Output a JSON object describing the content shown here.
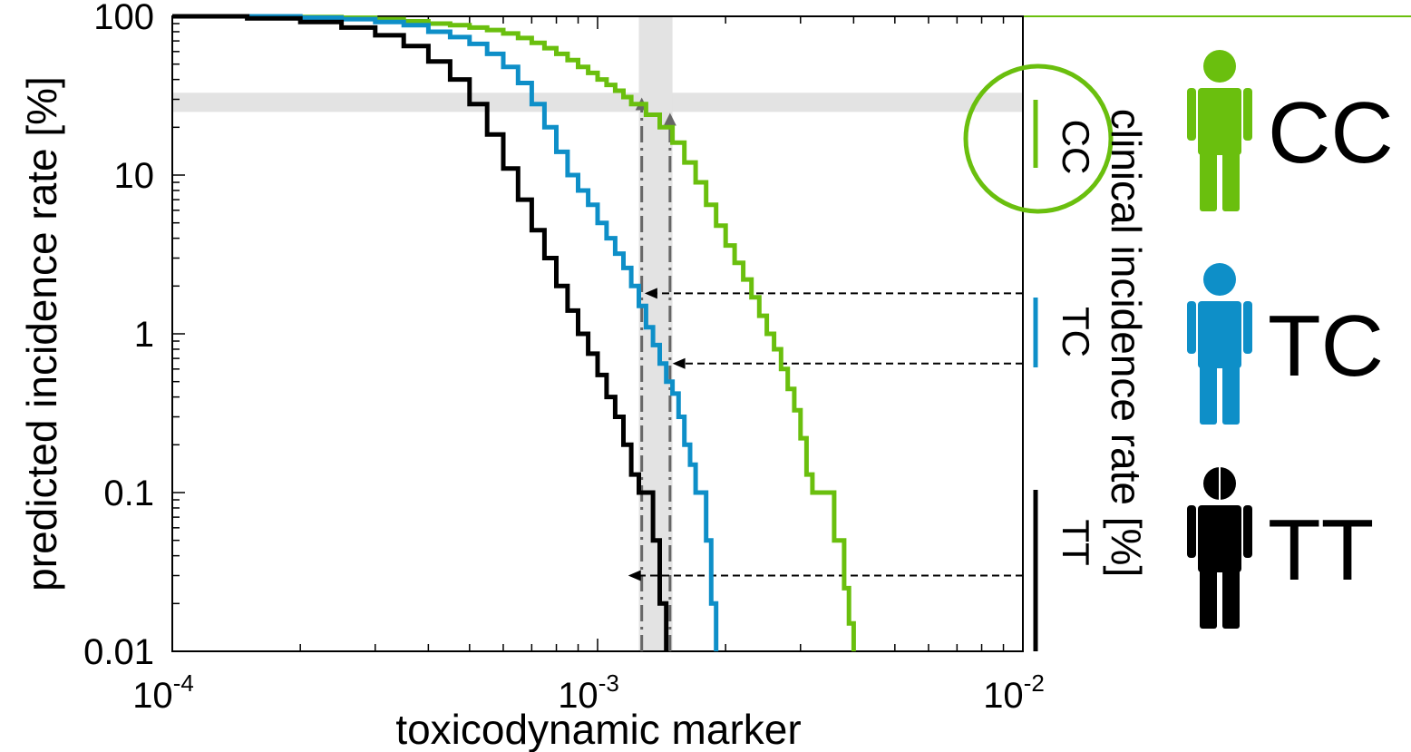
{
  "chart_data": {
    "type": "line",
    "x_scale": "log",
    "y_scale": "log",
    "xlim": [
      0.0001,
      0.01
    ],
    "ylim": [
      0.01,
      100
    ],
    "xlabel": "toxicodynamic marker",
    "ylabel": "predicted incidence rate [%]",
    "right_label": "clinical incidence rate  [%]",
    "x_tick_labels": [
      {
        "value": 0.0001,
        "base": "10",
        "exp": "-4"
      },
      {
        "value": 0.001,
        "base": "10",
        "exp": "-3"
      },
      {
        "value": 0.01,
        "base": "10",
        "exp": "-2"
      }
    ],
    "y_tick_labels": [
      {
        "value": 100,
        "text": "100"
      },
      {
        "value": 10,
        "text": "10"
      },
      {
        "value": 1,
        "text": "1"
      },
      {
        "value": 0.1,
        "text": "0.1"
      },
      {
        "value": 0.01,
        "text": "0.01"
      }
    ],
    "series": [
      {
        "name": "CC",
        "color": "#6abf0e",
        "points": [
          [
            0.0001,
            100
          ],
          [
            0.00018,
            99
          ],
          [
            0.00025,
            98
          ],
          [
            0.0003,
            96
          ],
          [
            0.00035,
            93
          ],
          [
            0.0004,
            90
          ],
          [
            0.00045,
            88
          ],
          [
            0.0005,
            85
          ],
          [
            0.00055,
            82
          ],
          [
            0.0006,
            78
          ],
          [
            0.00065,
            73
          ],
          [
            0.0007,
            68
          ],
          [
            0.00075,
            63
          ],
          [
            0.0008,
            58
          ],
          [
            0.00085,
            53
          ],
          [
            0.0009,
            48
          ],
          [
            0.00095,
            44
          ],
          [
            0.001,
            40
          ],
          [
            0.00105,
            37
          ],
          [
            0.0011,
            34
          ],
          [
            0.00115,
            31
          ],
          [
            0.0012,
            28
          ],
          [
            0.0013,
            24
          ],
          [
            0.0014,
            20
          ],
          [
            0.0015,
            16
          ],
          [
            0.0016,
            12
          ],
          [
            0.0017,
            9
          ],
          [
            0.0018,
            6.5
          ],
          [
            0.0019,
            4.8
          ],
          [
            0.002,
            3.6
          ],
          [
            0.0021,
            2.8
          ],
          [
            0.0022,
            2.2
          ],
          [
            0.0023,
            1.7
          ],
          [
            0.0024,
            1.3
          ],
          [
            0.0025,
            1.0
          ],
          [
            0.0026,
            0.8
          ],
          [
            0.0027,
            0.6
          ],
          [
            0.0028,
            0.45
          ],
          [
            0.0029,
            0.33
          ],
          [
            0.003,
            0.22
          ],
          [
            0.0031,
            0.13
          ],
          [
            0.0032,
            0.1
          ],
          [
            0.0034,
            0.1
          ],
          [
            0.0036,
            0.05
          ],
          [
            0.0038,
            0.025
          ],
          [
            0.0039,
            0.015
          ],
          [
            0.004,
            0.01
          ]
        ]
      },
      {
        "name": "TC",
        "color": "#0e8fc8",
        "points": [
          [
            0.0001,
            100
          ],
          [
            0.00015,
            100
          ],
          [
            0.0002,
            98
          ],
          [
            0.00025,
            96
          ],
          [
            0.0003,
            92
          ],
          [
            0.00035,
            88
          ],
          [
            0.0004,
            80
          ],
          [
            0.00045,
            74
          ],
          [
            0.0005,
            67
          ],
          [
            0.00055,
            58
          ],
          [
            0.0006,
            48
          ],
          [
            0.00065,
            38
          ],
          [
            0.0007,
            28
          ],
          [
            0.00075,
            20
          ],
          [
            0.0008,
            14
          ],
          [
            0.00085,
            10
          ],
          [
            0.0009,
            8
          ],
          [
            0.00095,
            6.5
          ],
          [
            0.001,
            5
          ],
          [
            0.00105,
            4
          ],
          [
            0.0011,
            3.2
          ],
          [
            0.00115,
            2.6
          ],
          [
            0.0012,
            2
          ],
          [
            0.00125,
            1.5
          ],
          [
            0.0013,
            1.1
          ],
          [
            0.00135,
            0.85
          ],
          [
            0.0014,
            0.65
          ],
          [
            0.00145,
            0.5
          ],
          [
            0.0015,
            0.42
          ],
          [
            0.00155,
            0.3
          ],
          [
            0.0016,
            0.2
          ],
          [
            0.00165,
            0.15
          ],
          [
            0.0017,
            0.1
          ],
          [
            0.00175,
            0.1
          ],
          [
            0.0018,
            0.05
          ],
          [
            0.00185,
            0.02
          ],
          [
            0.0019,
            0.01
          ]
        ]
      },
      {
        "name": "TT",
        "color": "#000000",
        "points": [
          [
            0.0001,
            100
          ],
          [
            0.00015,
            97
          ],
          [
            0.0002,
            92
          ],
          [
            0.00025,
            85
          ],
          [
            0.0003,
            76
          ],
          [
            0.00035,
            65
          ],
          [
            0.0004,
            52
          ],
          [
            0.00045,
            40
          ],
          [
            0.0005,
            28
          ],
          [
            0.00055,
            18
          ],
          [
            0.0006,
            11
          ],
          [
            0.00065,
            7
          ],
          [
            0.0007,
            4.5
          ],
          [
            0.00075,
            3
          ],
          [
            0.0008,
            2
          ],
          [
            0.00085,
            1.4
          ],
          [
            0.0009,
            1
          ],
          [
            0.00095,
            0.75
          ],
          [
            0.001,
            0.55
          ],
          [
            0.00105,
            0.4
          ],
          [
            0.0011,
            0.3
          ],
          [
            0.00115,
            0.2
          ],
          [
            0.0012,
            0.13
          ],
          [
            0.00125,
            0.1
          ],
          [
            0.0013,
            0.1
          ],
          [
            0.00135,
            0.05
          ],
          [
            0.0014,
            0.02
          ],
          [
            0.00145,
            0.01
          ]
        ]
      }
    ],
    "clinical_ranges": [
      {
        "group": "CC",
        "label": "CC",
        "color": "#6abf0e",
        "y_range": [
          16,
          32
        ],
        "circled": true
      },
      {
        "group": "TC",
        "label": "TC",
        "color": "#0e8fc8",
        "y_range": [
          0.6,
          1.8
        ],
        "circled": false
      },
      {
        "group": "TT",
        "label": "TT",
        "color": "#000000",
        "y_range": [
          0.01,
          0.1
        ],
        "circled": false
      }
    ],
    "highlight_band_y": [
      25,
      33
    ],
    "highlight_band_x": [
      0.00125,
      0.0015
    ],
    "annotations": {
      "vertical_markers": [
        {
          "x": 0.00127,
          "from_y": 0.01,
          "to_y": 30,
          "style": "dash-dot"
        },
        {
          "x": 0.00148,
          "from_y": 0.01,
          "to_y": 24,
          "style": "dash-dot"
        }
      ],
      "arrows": [
        {
          "from_x": 0.01,
          "to_x": 0.00129,
          "y": 1.8
        },
        {
          "from_x": 0.01,
          "to_x": 0.0015,
          "y": 0.65
        },
        {
          "from_x": 0.01,
          "to_x": 0.00118,
          "y": 0.03
        }
      ]
    },
    "grid": false,
    "legend": "right"
  },
  "groups": [
    {
      "label": "CC",
      "color": "#6abf0e",
      "split_head": false
    },
    {
      "label": "TC",
      "color": "#0e8fc8",
      "split_head": false
    },
    {
      "label": "TT",
      "color": "#000000",
      "split_head": true
    }
  ],
  "icons": {
    "person": "person-icon"
  }
}
